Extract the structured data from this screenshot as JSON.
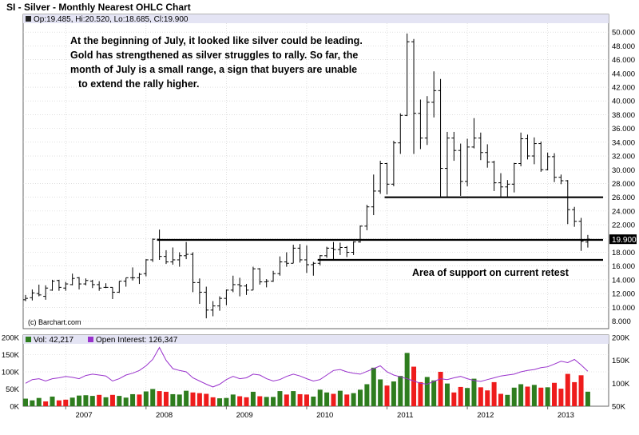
{
  "header": {
    "title": "SI - Silver - Monthly Nearest OHLC Chart",
    "ohlc_legend": "Op:19.485, Hi:20.520, Lo:18.685, Cl:19.900"
  },
  "volume_legend": {
    "vol": "Vol: 42,217",
    "open_interest": "Open Interest: 126,347"
  },
  "annotations": {
    "commentary": [
      "At the beginning of July, it looked like silver could be leading.",
      "Gold has strengthened as silver struggles to rally.  So far, the",
      "month of July is a small range, a sign that buyers are unable",
      "to extend the rally higher."
    ],
    "support_note": "Area of support on current retest",
    "copyright": "(c) Barchart.com"
  },
  "colors": {
    "up_volume": "#2e7d1e",
    "down_volume": "#ee1c1c",
    "open_interest": "#9932cc",
    "price_bar": "#000000",
    "panel_bg": "#ffffff",
    "grid": "#cccccc",
    "last_price_bg": "#000000"
  },
  "chart_data": [
    {
      "type": "ohlc",
      "title": "SI - Silver - Monthly Nearest OHLC Chart",
      "frequency": "monthly",
      "x_tick_labels": [
        "2007",
        "2008",
        "2009",
        "2010",
        "2011",
        "2012",
        "2013"
      ],
      "y_tick_labels": [
        "8.000",
        "10.000",
        "12.000",
        "14.000",
        "16.000",
        "18.000",
        "20.000",
        "22.000",
        "24.000",
        "26.000",
        "28.000",
        "30.000",
        "32.000",
        "34.000",
        "36.000",
        "38.000",
        "40.000",
        "42.000",
        "44.000",
        "46.000",
        "48.000",
        "50.000"
      ],
      "ylim": [
        6.9,
        51.3
      ],
      "last_price": "19.900",
      "horizontal_lines": [
        {
          "y": 26.0,
          "x_start": "2011-01",
          "x_end": "2013-12"
        },
        {
          "y": 19.8,
          "x_start": "2008-03",
          "x_end": "2013-12"
        },
        {
          "y": 16.9,
          "x_start": "2010-03",
          "x_end": "2013-12"
        }
      ],
      "bars": [
        {
          "m": "2006-07",
          "o": 11.1,
          "h": 11.8,
          "l": 10.9,
          "c": 11.3
        },
        {
          "m": "2006-08",
          "o": 11.4,
          "h": 12.6,
          "l": 11.0,
          "c": 12.1
        },
        {
          "m": "2006-09",
          "o": 12.0,
          "h": 13.3,
          "l": 11.6,
          "c": 11.8
        },
        {
          "m": "2006-10",
          "o": 11.6,
          "h": 13.2,
          "l": 11.1,
          "c": 12.8
        },
        {
          "m": "2006-11",
          "o": 12.5,
          "h": 14.0,
          "l": 12.4,
          "c": 13.8
        },
        {
          "m": "2006-12",
          "o": 13.9,
          "h": 14.0,
          "l": 12.4,
          "c": 12.9
        },
        {
          "m": "2007-01",
          "o": 12.8,
          "h": 13.7,
          "l": 12.4,
          "c": 13.4
        },
        {
          "m": "2007-02",
          "o": 13.3,
          "h": 14.9,
          "l": 13.2,
          "c": 14.2
        },
        {
          "m": "2007-03",
          "o": 14.3,
          "h": 14.4,
          "l": 12.6,
          "c": 13.4
        },
        {
          "m": "2007-04",
          "o": 13.4,
          "h": 14.2,
          "l": 13.2,
          "c": 13.9
        },
        {
          "m": "2007-05",
          "o": 13.8,
          "h": 14.0,
          "l": 12.8,
          "c": 13.3
        },
        {
          "m": "2007-06",
          "o": 13.3,
          "h": 13.8,
          "l": 12.4,
          "c": 12.8
        },
        {
          "m": "2007-07",
          "o": 12.9,
          "h": 13.5,
          "l": 12.8,
          "c": 12.9
        },
        {
          "m": "2007-08",
          "o": 12.9,
          "h": 12.9,
          "l": 11.2,
          "c": 12.2
        },
        {
          "m": "2007-09",
          "o": 12.2,
          "h": 13.8,
          "l": 12.1,
          "c": 13.8
        },
        {
          "m": "2007-10",
          "o": 13.8,
          "h": 14.3,
          "l": 13.0,
          "c": 14.3
        },
        {
          "m": "2007-11",
          "o": 14.3,
          "h": 15.8,
          "l": 13.9,
          "c": 14.3
        },
        {
          "m": "2007-12",
          "o": 14.3,
          "h": 15.0,
          "l": 13.4,
          "c": 14.8
        },
        {
          "m": "2008-01",
          "o": 14.9,
          "h": 17.0,
          "l": 14.5,
          "c": 16.9
        },
        {
          "m": "2008-02",
          "o": 16.9,
          "h": 20.0,
          "l": 16.6,
          "c": 19.9
        },
        {
          "m": "2008-03",
          "o": 19.9,
          "h": 21.3,
          "l": 16.9,
          "c": 17.4
        },
        {
          "m": "2008-04",
          "o": 17.4,
          "h": 18.3,
          "l": 16.3,
          "c": 16.6
        },
        {
          "m": "2008-05",
          "o": 16.6,
          "h": 18.7,
          "l": 16.2,
          "c": 16.9
        },
        {
          "m": "2008-06",
          "o": 16.9,
          "h": 18.0,
          "l": 15.9,
          "c": 17.5
        },
        {
          "m": "2008-07",
          "o": 17.5,
          "h": 19.5,
          "l": 17.0,
          "c": 17.7
        },
        {
          "m": "2008-08",
          "o": 17.7,
          "h": 18.0,
          "l": 12.2,
          "c": 13.6
        },
        {
          "m": "2008-09",
          "o": 13.6,
          "h": 14.2,
          "l": 10.5,
          "c": 12.2
        },
        {
          "m": "2008-10",
          "o": 12.2,
          "h": 13.0,
          "l": 8.4,
          "c": 9.6
        },
        {
          "m": "2008-11",
          "o": 9.6,
          "h": 10.9,
          "l": 8.7,
          "c": 10.2
        },
        {
          "m": "2008-12",
          "o": 10.2,
          "h": 11.6,
          "l": 9.5,
          "c": 11.3
        },
        {
          "m": "2009-01",
          "o": 11.3,
          "h": 12.6,
          "l": 10.3,
          "c": 12.5
        },
        {
          "m": "2009-02",
          "o": 12.5,
          "h": 14.6,
          "l": 12.2,
          "c": 13.3
        },
        {
          "m": "2009-03",
          "o": 13.3,
          "h": 14.3,
          "l": 11.6,
          "c": 13.1
        },
        {
          "m": "2009-04",
          "o": 13.1,
          "h": 13.4,
          "l": 11.8,
          "c": 12.5
        },
        {
          "m": "2009-05",
          "o": 12.5,
          "h": 15.9,
          "l": 12.5,
          "c": 15.6
        },
        {
          "m": "2009-06",
          "o": 15.6,
          "h": 15.7,
          "l": 13.3,
          "c": 13.7
        },
        {
          "m": "2009-07",
          "o": 13.7,
          "h": 14.1,
          "l": 12.9,
          "c": 13.8
        },
        {
          "m": "2009-08",
          "o": 13.8,
          "h": 15.3,
          "l": 13.7,
          "c": 14.9
        },
        {
          "m": "2009-09",
          "o": 14.9,
          "h": 17.4,
          "l": 14.6,
          "c": 16.6
        },
        {
          "m": "2009-10",
          "o": 16.6,
          "h": 18.0,
          "l": 15.9,
          "c": 16.4
        },
        {
          "m": "2009-11",
          "o": 16.4,
          "h": 19.1,
          "l": 16.4,
          "c": 18.6
        },
        {
          "m": "2009-12",
          "o": 18.6,
          "h": 19.2,
          "l": 16.5,
          "c": 16.9
        },
        {
          "m": "2010-01",
          "o": 16.9,
          "h": 19.0,
          "l": 15.0,
          "c": 16.2
        },
        {
          "m": "2010-02",
          "o": 16.2,
          "h": 16.6,
          "l": 14.6,
          "c": 16.4
        },
        {
          "m": "2010-03",
          "o": 16.4,
          "h": 17.6,
          "l": 16.1,
          "c": 17.5
        },
        {
          "m": "2010-04",
          "o": 17.5,
          "h": 18.8,
          "l": 17.2,
          "c": 18.6
        },
        {
          "m": "2010-05",
          "o": 18.6,
          "h": 19.5,
          "l": 16.9,
          "c": 18.4
        },
        {
          "m": "2010-06",
          "o": 18.4,
          "h": 19.4,
          "l": 17.6,
          "c": 18.7
        },
        {
          "m": "2010-07",
          "o": 18.7,
          "h": 18.9,
          "l": 17.3,
          "c": 18.0
        },
        {
          "m": "2010-08",
          "o": 18.0,
          "h": 19.6,
          "l": 17.6,
          "c": 19.5
        },
        {
          "m": "2010-09",
          "o": 19.5,
          "h": 21.9,
          "l": 19.4,
          "c": 21.8
        },
        {
          "m": "2010-10",
          "o": 21.8,
          "h": 24.9,
          "l": 21.2,
          "c": 24.6
        },
        {
          "m": "2010-11",
          "o": 24.6,
          "h": 29.3,
          "l": 23.4,
          "c": 26.9
        },
        {
          "m": "2010-12",
          "o": 26.9,
          "h": 31.3,
          "l": 26.5,
          "c": 30.9
        },
        {
          "m": "2011-01",
          "o": 30.9,
          "h": 31.0,
          "l": 26.4,
          "c": 27.9
        },
        {
          "m": "2011-02",
          "o": 27.9,
          "h": 34.2,
          "l": 27.6,
          "c": 33.9
        },
        {
          "m": "2011-03",
          "o": 33.9,
          "h": 38.2,
          "l": 32.3,
          "c": 37.9
        },
        {
          "m": "2011-04",
          "o": 37.9,
          "h": 49.8,
          "l": 37.8,
          "c": 48.6
        },
        {
          "m": "2011-05",
          "o": 48.6,
          "h": 49.0,
          "l": 32.3,
          "c": 38.2
        },
        {
          "m": "2011-06",
          "o": 38.2,
          "h": 40.2,
          "l": 33.0,
          "c": 34.6
        },
        {
          "m": "2011-07",
          "o": 34.6,
          "h": 40.7,
          "l": 33.6,
          "c": 39.8
        },
        {
          "m": "2011-08",
          "o": 39.8,
          "h": 44.3,
          "l": 37.6,
          "c": 41.5
        },
        {
          "m": "2011-09",
          "o": 41.5,
          "h": 43.2,
          "l": 26.1,
          "c": 30.2
        },
        {
          "m": "2011-10",
          "o": 30.2,
          "h": 35.5,
          "l": 26.1,
          "c": 34.6
        },
        {
          "m": "2011-11",
          "o": 34.6,
          "h": 35.5,
          "l": 31.3,
          "c": 32.8
        },
        {
          "m": "2011-12",
          "o": 32.8,
          "h": 33.8,
          "l": 26.2,
          "c": 28.3
        },
        {
          "m": "2012-01",
          "o": 28.3,
          "h": 34.5,
          "l": 27.6,
          "c": 33.3
        },
        {
          "m": "2012-02",
          "o": 33.3,
          "h": 37.5,
          "l": 33.1,
          "c": 34.6
        },
        {
          "m": "2012-03",
          "o": 34.6,
          "h": 35.4,
          "l": 31.4,
          "c": 32.5
        },
        {
          "m": "2012-04",
          "o": 32.5,
          "h": 33.7,
          "l": 30.3,
          "c": 31.1
        },
        {
          "m": "2012-05",
          "o": 31.1,
          "h": 31.3,
          "l": 26.9,
          "c": 28.1
        },
        {
          "m": "2012-06",
          "o": 28.1,
          "h": 29.5,
          "l": 26.1,
          "c": 27.5
        },
        {
          "m": "2012-07",
          "o": 27.5,
          "h": 28.5,
          "l": 26.1,
          "c": 27.9
        },
        {
          "m": "2012-08",
          "o": 27.9,
          "h": 31.0,
          "l": 26.7,
          "c": 30.9
        },
        {
          "m": "2012-09",
          "o": 30.9,
          "h": 35.4,
          "l": 30.5,
          "c": 34.5
        },
        {
          "m": "2012-10",
          "o": 34.5,
          "h": 35.1,
          "l": 31.5,
          "c": 32.0
        },
        {
          "m": "2012-11",
          "o": 32.0,
          "h": 34.7,
          "l": 30.8,
          "c": 33.8
        },
        {
          "m": "2012-12",
          "o": 33.8,
          "h": 34.1,
          "l": 29.7,
          "c": 30.0
        },
        {
          "m": "2013-01",
          "o": 30.0,
          "h": 32.5,
          "l": 29.9,
          "c": 31.9
        },
        {
          "m": "2013-02",
          "o": 31.9,
          "h": 32.4,
          "l": 28.2,
          "c": 28.9
        },
        {
          "m": "2013-03",
          "o": 28.9,
          "h": 29.3,
          "l": 27.9,
          "c": 28.4
        },
        {
          "m": "2013-04",
          "o": 28.4,
          "h": 28.5,
          "l": 22.1,
          "c": 24.2
        },
        {
          "m": "2013-05",
          "o": 24.2,
          "h": 24.6,
          "l": 21.7,
          "c": 22.5
        },
        {
          "m": "2013-06",
          "o": 22.5,
          "h": 23.0,
          "l": 18.2,
          "c": 19.6
        },
        {
          "m": "2013-07",
          "o": 19.485,
          "h": 20.52,
          "l": 18.685,
          "c": 19.9
        }
      ]
    },
    {
      "type": "bar",
      "title": "",
      "y_tick_labels": [
        "0K",
        "50K",
        "100K",
        "150K",
        "200K"
      ],
      "right_tick_labels": [
        "200K",
        "150K",
        "100K",
        "50K"
      ],
      "ylim": [
        0,
        200000
      ],
      "oi_ylim": [
        50000,
        200000
      ],
      "volume": [
        [
          22000,
          "up"
        ],
        [
          17000,
          "up"
        ],
        [
          24000,
          "up"
        ],
        [
          14000,
          "down"
        ],
        [
          28000,
          "up"
        ],
        [
          17000,
          "down"
        ],
        [
          19000,
          "down"
        ],
        [
          25000,
          "up"
        ],
        [
          31000,
          "up"
        ],
        [
          32000,
          "up"
        ],
        [
          30000,
          "up"
        ],
        [
          33000,
          "down"
        ],
        [
          26000,
          "up"
        ],
        [
          33000,
          "down"
        ],
        [
          30000,
          "up"
        ],
        [
          25000,
          "up"
        ],
        [
          35000,
          "up"
        ],
        [
          34000,
          "down"
        ],
        [
          43000,
          "up"
        ],
        [
          50000,
          "up"
        ],
        [
          44000,
          "down"
        ],
        [
          42000,
          "down"
        ],
        [
          35000,
          "up"
        ],
        [
          34000,
          "up"
        ],
        [
          45000,
          "up"
        ],
        [
          40000,
          "down"
        ],
        [
          38000,
          "down"
        ],
        [
          36000,
          "down"
        ],
        [
          26000,
          "down"
        ],
        [
          23000,
          "up"
        ],
        [
          24000,
          "up"
        ],
        [
          34000,
          "up"
        ],
        [
          29000,
          "down"
        ],
        [
          26000,
          "down"
        ],
        [
          42000,
          "up"
        ],
        [
          29000,
          "down"
        ],
        [
          27000,
          "up"
        ],
        [
          27000,
          "up"
        ],
        [
          44000,
          "up"
        ],
        [
          34000,
          "down"
        ],
        [
          44000,
          "up"
        ],
        [
          35000,
          "down"
        ],
        [
          34000,
          "down"
        ],
        [
          28000,
          "up"
        ],
        [
          48000,
          "up"
        ],
        [
          40000,
          "up"
        ],
        [
          36000,
          "down"
        ],
        [
          45000,
          "up"
        ],
        [
          34000,
          "down"
        ],
        [
          38000,
          "up"
        ],
        [
          48000,
          "up"
        ],
        [
          64000,
          "up"
        ],
        [
          112000,
          "up"
        ],
        [
          78000,
          "up"
        ],
        [
          60000,
          "down"
        ],
        [
          72000,
          "up"
        ],
        [
          88000,
          "up"
        ],
        [
          155000,
          "up"
        ],
        [
          115000,
          "down"
        ],
        [
          70000,
          "down"
        ],
        [
          85000,
          "up"
        ],
        [
          75000,
          "up"
        ],
        [
          100000,
          "down"
        ],
        [
          66000,
          "up"
        ],
        [
          40000,
          "down"
        ],
        [
          56000,
          "down"
        ],
        [
          53000,
          "up"
        ],
        [
          80000,
          "up"
        ],
        [
          55000,
          "down"
        ],
        [
          46000,
          "down"
        ],
        [
          70000,
          "down"
        ],
        [
          36000,
          "down"
        ],
        [
          33000,
          "up"
        ],
        [
          54000,
          "up"
        ],
        [
          64000,
          "up"
        ],
        [
          57000,
          "down"
        ],
        [
          62000,
          "up"
        ],
        [
          54000,
          "down"
        ],
        [
          55000,
          "up"
        ],
        [
          68000,
          "down"
        ],
        [
          51000,
          "down"
        ],
        [
          94000,
          "down"
        ],
        [
          70000,
          "down"
        ],
        [
          90000,
          "down"
        ],
        [
          42217,
          "up"
        ]
      ],
      "open_interest": [
        100000,
        108000,
        110000,
        105000,
        110000,
        112000,
        115000,
        113000,
        110000,
        117000,
        120000,
        118000,
        116000,
        105000,
        110000,
        118000,
        122000,
        128000,
        138000,
        152000,
        178000,
        150000,
        132000,
        128000,
        125000,
        112000,
        105000,
        98000,
        92000,
        98000,
        108000,
        115000,
        110000,
        112000,
        120000,
        118000,
        110000,
        105000,
        108000,
        115000,
        120000,
        116000,
        110000,
        105000,
        108000,
        118000,
        128000,
        130000,
        125000,
        122000,
        120000,
        126000,
        132000,
        138000,
        125000,
        118000,
        114000,
        110000,
        105000,
        100000,
        98000,
        104000,
        110000,
        108000,
        112000,
        115000,
        110000,
        106000,
        104000,
        108000,
        112000,
        116000,
        118000,
        120000,
        125000,
        128000,
        130000,
        134000,
        136000,
        142000,
        148000,
        145000,
        152000,
        140000,
        126347
      ]
    }
  ]
}
